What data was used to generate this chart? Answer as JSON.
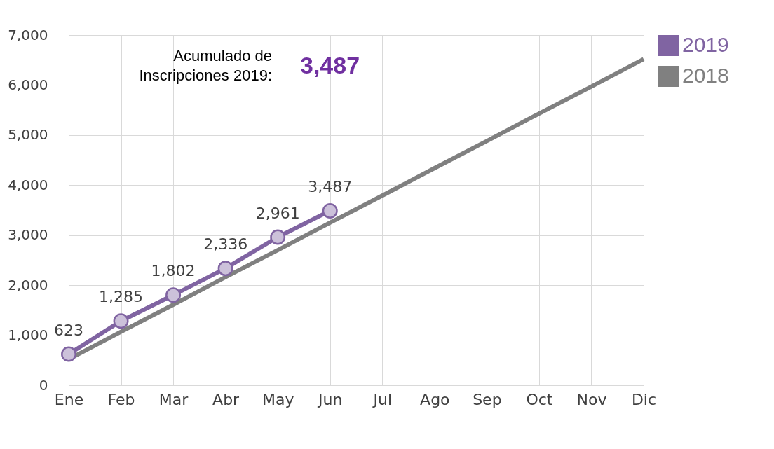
{
  "chart_data": {
    "type": "line",
    "categories": [
      "Ene",
      "Feb",
      "Mar",
      "Abr",
      "May",
      "Jun",
      "Jul",
      "Ago",
      "Sep",
      "Oct",
      "Nov",
      "Dic"
    ],
    "series": [
      {
        "name": "2019",
        "color": "#8064a2",
        "marker": "circle",
        "values": [
          623,
          1285,
          1802,
          2336,
          2961,
          3487,
          null,
          null,
          null,
          null,
          null,
          null
        ],
        "value_labels": [
          "623",
          "1,285",
          "1,802",
          "2,336",
          "2,961",
          "3,487",
          null,
          null,
          null,
          null,
          null,
          null
        ]
      },
      {
        "name": "2018",
        "color": "#808080",
        "marker": "none",
        "values": [
          520,
          1070,
          1610,
          2160,
          2700,
          3250,
          3790,
          4340,
          4880,
          5430,
          5970,
          6520
        ]
      }
    ],
    "ylim": [
      0,
      7000
    ],
    "yticks": [
      0,
      {
        "value": 1000,
        "label": "1,000"
      },
      {
        "value": 2000,
        "label": "2,000"
      },
      {
        "value": 3000,
        "label": "3,000"
      },
      {
        "value": 4000,
        "label": "4,000"
      },
      {
        "value": 5000,
        "label": "5,000"
      },
      {
        "value": 6000,
        "label": "6,000"
      },
      {
        "value": 7000,
        "label": "7,000"
      }
    ],
    "grid": true,
    "legend": "right",
    "annotations": [
      "Acumulado de\nInscripciones 2019:",
      "3,487"
    ]
  }
}
